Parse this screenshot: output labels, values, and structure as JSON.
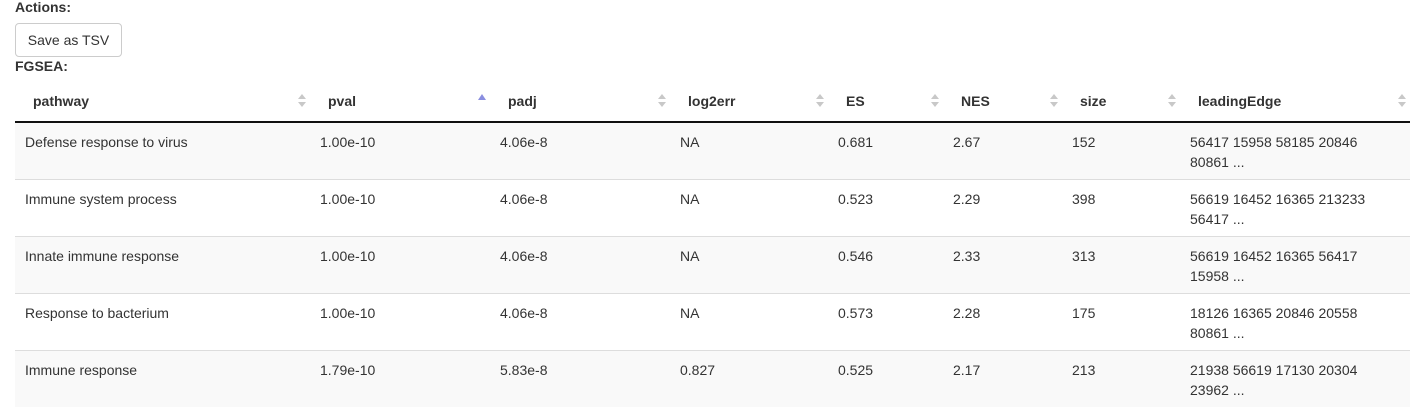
{
  "actions": {
    "label": "Actions:",
    "save_button": "Save as TSV"
  },
  "fgsea": {
    "label": "FGSEA:"
  },
  "table": {
    "columns": [
      "pathway",
      "pval",
      "padj",
      "log2err",
      "ES",
      "NES",
      "size",
      "leadingEdge"
    ],
    "sorted_column": "pval",
    "sort_direction": "ascending",
    "rows": [
      [
        "Defense response to virus",
        "1.00e-10",
        "4.06e-8",
        "NA",
        "0.681",
        "2.67",
        "152",
        "56417 15958 58185 20846 80861 ..."
      ],
      [
        "Immune system process",
        "1.00e-10",
        "4.06e-8",
        "NA",
        "0.523",
        "2.29",
        "398",
        "56619 16452 16365 213233 56417 ..."
      ],
      [
        "Innate immune response",
        "1.00e-10",
        "4.06e-8",
        "NA",
        "0.546",
        "2.33",
        "313",
        "56619 16452 16365 56417 15958 ..."
      ],
      [
        "Response to bacterium",
        "1.00e-10",
        "4.06e-8",
        "NA",
        "0.573",
        "2.28",
        "175",
        "18126 16365 20846 20558 80861 ..."
      ],
      [
        "Immune response",
        "1.79e-10",
        "5.83e-8",
        "0.827",
        "0.525",
        "2.17",
        "213",
        "21938 56619 17130 20304 23962 ..."
      ]
    ]
  }
}
